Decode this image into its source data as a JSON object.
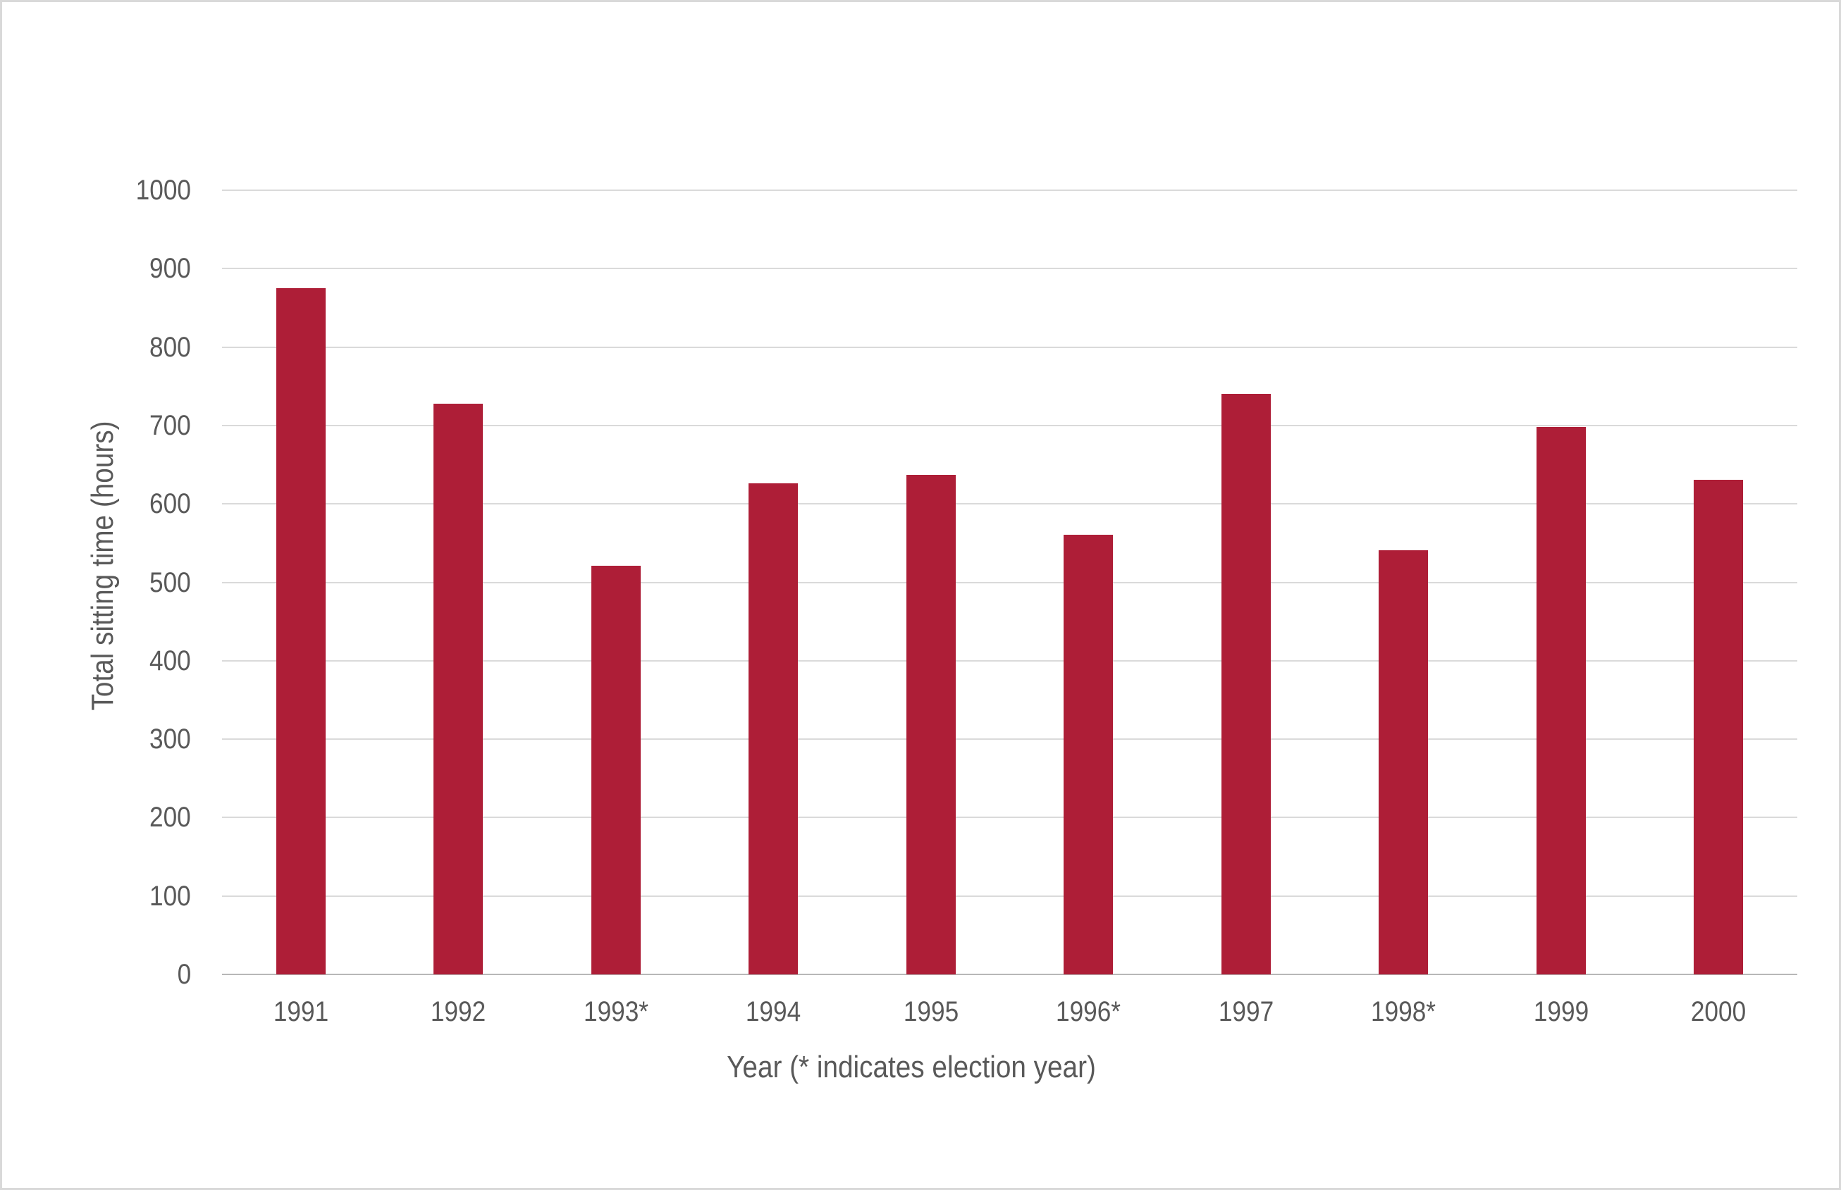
{
  "figure": {
    "background_color": "#ffffff",
    "border_color": "#d9d9d9"
  },
  "chart_data": {
    "type": "bar",
    "title": "",
    "categories": [
      "1991",
      "1992",
      "1993*",
      "1994",
      "1995",
      "1996*",
      "1997",
      "1998*",
      "1999",
      "2000"
    ],
    "values": [
      875,
      728,
      521,
      626,
      637,
      561,
      740,
      541,
      698,
      631
    ],
    "series_name": "Total sitting time",
    "xlabel": "Year (* indicates election year)",
    "ylabel": "Total sitting time (hours)",
    "ylim": [
      0,
      1000
    ],
    "yticks": [
      0,
      100,
      200,
      300,
      400,
      500,
      600,
      700,
      800,
      900,
      1000
    ],
    "grid": true,
    "legend_position": "none",
    "bar_color": "#AE1E37",
    "gridline_color": "#dadada",
    "axisline_color": "#b7b7b7",
    "text_color": "#595959"
  }
}
